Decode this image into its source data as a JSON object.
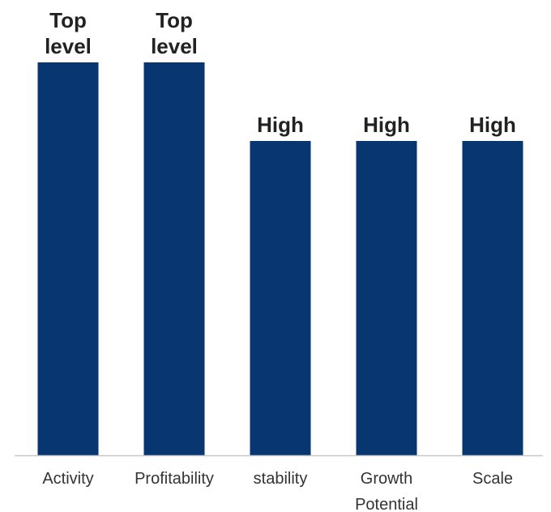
{
  "chart_data": {
    "type": "bar",
    "categories": [
      "Activity",
      "Profitability",
      "stability",
      "Growth Potential",
      "Scale"
    ],
    "category_lines": [
      [
        "Activity"
      ],
      [
        "Profitability"
      ],
      [
        "stability"
      ],
      [
        "Growth",
        "Potential"
      ],
      [
        "Scale"
      ]
    ],
    "values": [
      5,
      5,
      4,
      4,
      4
    ],
    "data_labels": [
      [
        "Top",
        "level"
      ],
      [
        "Top",
        "level"
      ],
      [
        "High"
      ],
      [
        "High"
      ],
      [
        "High"
      ]
    ],
    "ylim": [
      0,
      5
    ],
    "title": "",
    "xlabel": "",
    "ylabel": "",
    "grid": false,
    "legend": "none",
    "bar_color": "#083670",
    "axis_color": "#c8c8c8"
  }
}
